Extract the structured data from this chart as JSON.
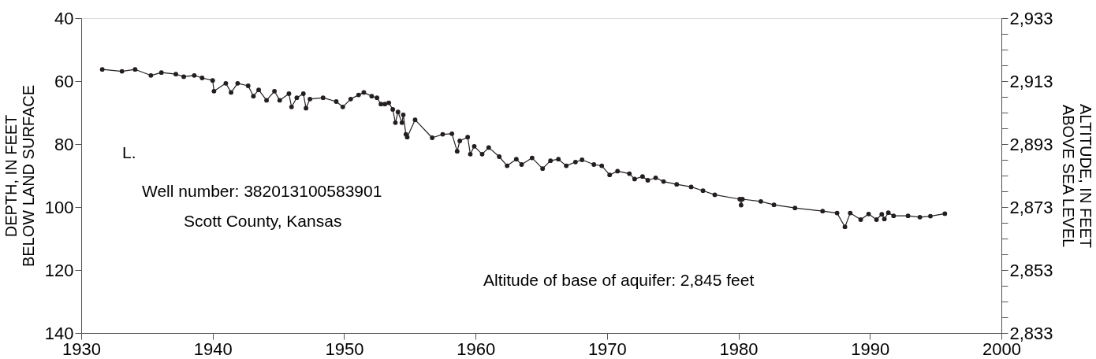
{
  "chart_data": {
    "type": "line",
    "xlabel": null,
    "ylabel": "DEPTH, IN FEET\nBELOW LAND SURFACE",
    "y2label": "ALTITUDE, IN FEET\nABOVE SEA LEVEL",
    "annotations": [
      "L.",
      "Well number: 382013100583901",
      "Scott County, Kansas",
      "Altitude of base of aquifer: 2,845 feet"
    ],
    "xlim": [
      1930,
      2000
    ],
    "xticks": [
      1930,
      1940,
      1950,
      1960,
      1970,
      1980,
      1990,
      2000
    ],
    "ylim": [
      140,
      40
    ],
    "yticks": [
      40,
      {
        "value": 45,
        "label": null
      },
      {
        "value": 50,
        "label": null
      },
      {
        "value": 55,
        "label": null
      },
      60,
      {
        "value": 65,
        "label": null
      },
      {
        "value": 70,
        "label": null
      },
      {
        "value": 75,
        "label": null
      },
      80,
      {
        "value": 85,
        "label": null
      },
      {
        "value": 90,
        "label": null
      },
      {
        "value": 95,
        "label": null
      },
      100,
      {
        "value": 105,
        "label": null
      },
      {
        "value": 110,
        "label": null
      },
      {
        "value": 115,
        "label": null
      },
      120,
      {
        "value": 125,
        "label": null
      },
      {
        "value": 130,
        "label": null
      },
      {
        "value": 135,
        "label": null
      },
      140
    ],
    "y2lim": [
      2833,
      2933
    ],
    "y2ticks": [
      {
        "value": 2933,
        "label": "2,933"
      },
      {
        "value": 2928,
        "label": null
      },
      {
        "value": 2923,
        "label": null
      },
      {
        "value": 2918,
        "label": null
      },
      {
        "value": 2913,
        "label": "2,913"
      },
      {
        "value": 2908,
        "label": null
      },
      {
        "value": 2903,
        "label": null
      },
      {
        "value": 2898,
        "label": null
      },
      {
        "value": 2893,
        "label": "2,893"
      },
      {
        "value": 2888,
        "label": null
      },
      {
        "value": 2883,
        "label": null
      },
      {
        "value": 2878,
        "label": null
      },
      {
        "value": 2873,
        "label": "2,873"
      },
      {
        "value": 2868,
        "label": null
      },
      {
        "value": 2863,
        "label": null
      },
      {
        "value": 2858,
        "label": null
      },
      {
        "value": 2853,
        "label": "2,853"
      },
      {
        "value": 2848,
        "label": null
      },
      {
        "value": 2843,
        "label": null
      },
      {
        "value": 2838,
        "label": null
      },
      {
        "value": 2833,
        "label": "2,833"
      }
    ],
    "grid": false,
    "marker": "circle",
    "line_style": "solid",
    "series": [
      {
        "color": "#231f20",
        "x": [
          1931.6,
          1933.1,
          1934.1,
          1935.3,
          1936.1,
          1937.2,
          1937.8,
          1938.6,
          1939.2,
          1940.0,
          1940.1,
          1941.0,
          1941.4,
          1941.9,
          1942.7,
          1943.1,
          1943.5,
          1944.1,
          1944.7,
          1945.1,
          1945.8,
          1946.0,
          1946.4,
          1946.9,
          1947.1,
          1947.4,
          1948.4,
          1949.4,
          1949.9,
          1950.5,
          1951.1,
          1951.5,
          1952.1,
          1952.5,
          1952.8,
          1953.1,
          1953.4,
          1953.7,
          1953.9,
          1954.1,
          1954.4,
          1954.5,
          1954.7,
          1954.8,
          1955.4,
          1956.7,
          1957.5,
          1958.2,
          1958.6,
          1958.8,
          1959.4,
          1959.6,
          1959.9,
          1960.5,
          1961.0,
          1961.8,
          1962.4,
          1963.1,
          1963.5,
          1964.3,
          1965.1,
          1965.7,
          1966.3,
          1966.9,
          1967.6,
          1968.1,
          1969.0,
          1969.6,
          1970.2,
          1970.8,
          1971.7,
          1972.1,
          1972.7,
          1973.1,
          1973.7,
          1974.3,
          1975.3,
          1976.4,
          1977.3,
          1978.2,
          1980.1,
          1980.2,
          1980.3,
          1981.7,
          1982.7,
          1984.3,
          1986.4,
          1987.5,
          1988.1,
          1988.5,
          1989.3,
          1989.9,
          1990.5,
          1990.9,
          1991.1,
          1991.4,
          1991.8,
          1992.9,
          1993.8,
          1994.6,
          1995.7
        ],
        "values": [
          56.3,
          56.9,
          56.3,
          58.2,
          57.3,
          57.8,
          58.6,
          58.2,
          59.0,
          59.8,
          63.2,
          60.7,
          63.6,
          60.7,
          61.5,
          64.8,
          62.8,
          66.1,
          63.2,
          66.1,
          64.0,
          68.2,
          65.3,
          64.0,
          68.6,
          65.7,
          65.3,
          66.5,
          68.2,
          65.7,
          64.4,
          63.6,
          64.8,
          65.3,
          67.3,
          67.3,
          66.9,
          69.0,
          73.2,
          69.8,
          73.2,
          70.7,
          76.9,
          77.8,
          72.3,
          78.0,
          76.9,
          76.7,
          82.3,
          79.0,
          77.8,
          83.2,
          80.7,
          83.2,
          81.1,
          84.0,
          86.9,
          84.8,
          86.5,
          84.4,
          87.8,
          85.3,
          84.8,
          86.9,
          85.7,
          85.0,
          86.5,
          86.9,
          89.8,
          88.6,
          89.4,
          91.1,
          90.3,
          91.5,
          90.7,
          91.9,
          92.8,
          93.6,
          94.8,
          96.1,
          97.5,
          99.4,
          97.5,
          98.2,
          99.3,
          100.3,
          101.3,
          101.9,
          106.3,
          101.9,
          104.0,
          102.2,
          104.0,
          102.3,
          103.8,
          101.8,
          102.8,
          102.8,
          103.2,
          102.9,
          102.1
        ]
      }
    ]
  }
}
